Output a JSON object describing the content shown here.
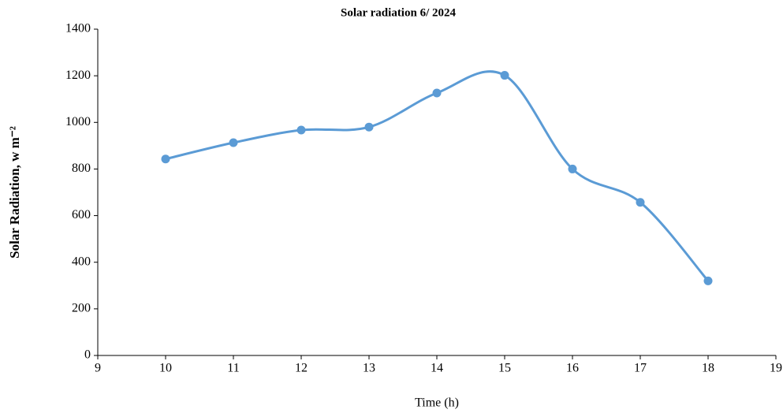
{
  "chart_data": {
    "type": "line",
    "title": "Solar radiation 6/ 2024",
    "x_label": "Time (h)",
    "y_label": "Solar Radiation, w  m⁻²",
    "x": [
      10,
      11,
      12,
      13,
      14,
      15,
      16,
      17,
      18
    ],
    "series": [
      {
        "name": "Solar radiation",
        "color": "#5b9bd5",
        "values": [
          843,
          913,
          967,
          980,
          1126,
          1202,
          800,
          657,
          320
        ]
      }
    ],
    "xlim": [
      9,
      19
    ],
    "xticks": [
      9,
      10,
      11,
      12,
      13,
      14,
      15,
      16,
      17,
      18,
      19
    ],
    "ylim": [
      0,
      1400
    ],
    "yticks": [
      0,
      200,
      400,
      600,
      800,
      1000,
      1200,
      1400
    ],
    "smooth": true,
    "grid": false
  }
}
